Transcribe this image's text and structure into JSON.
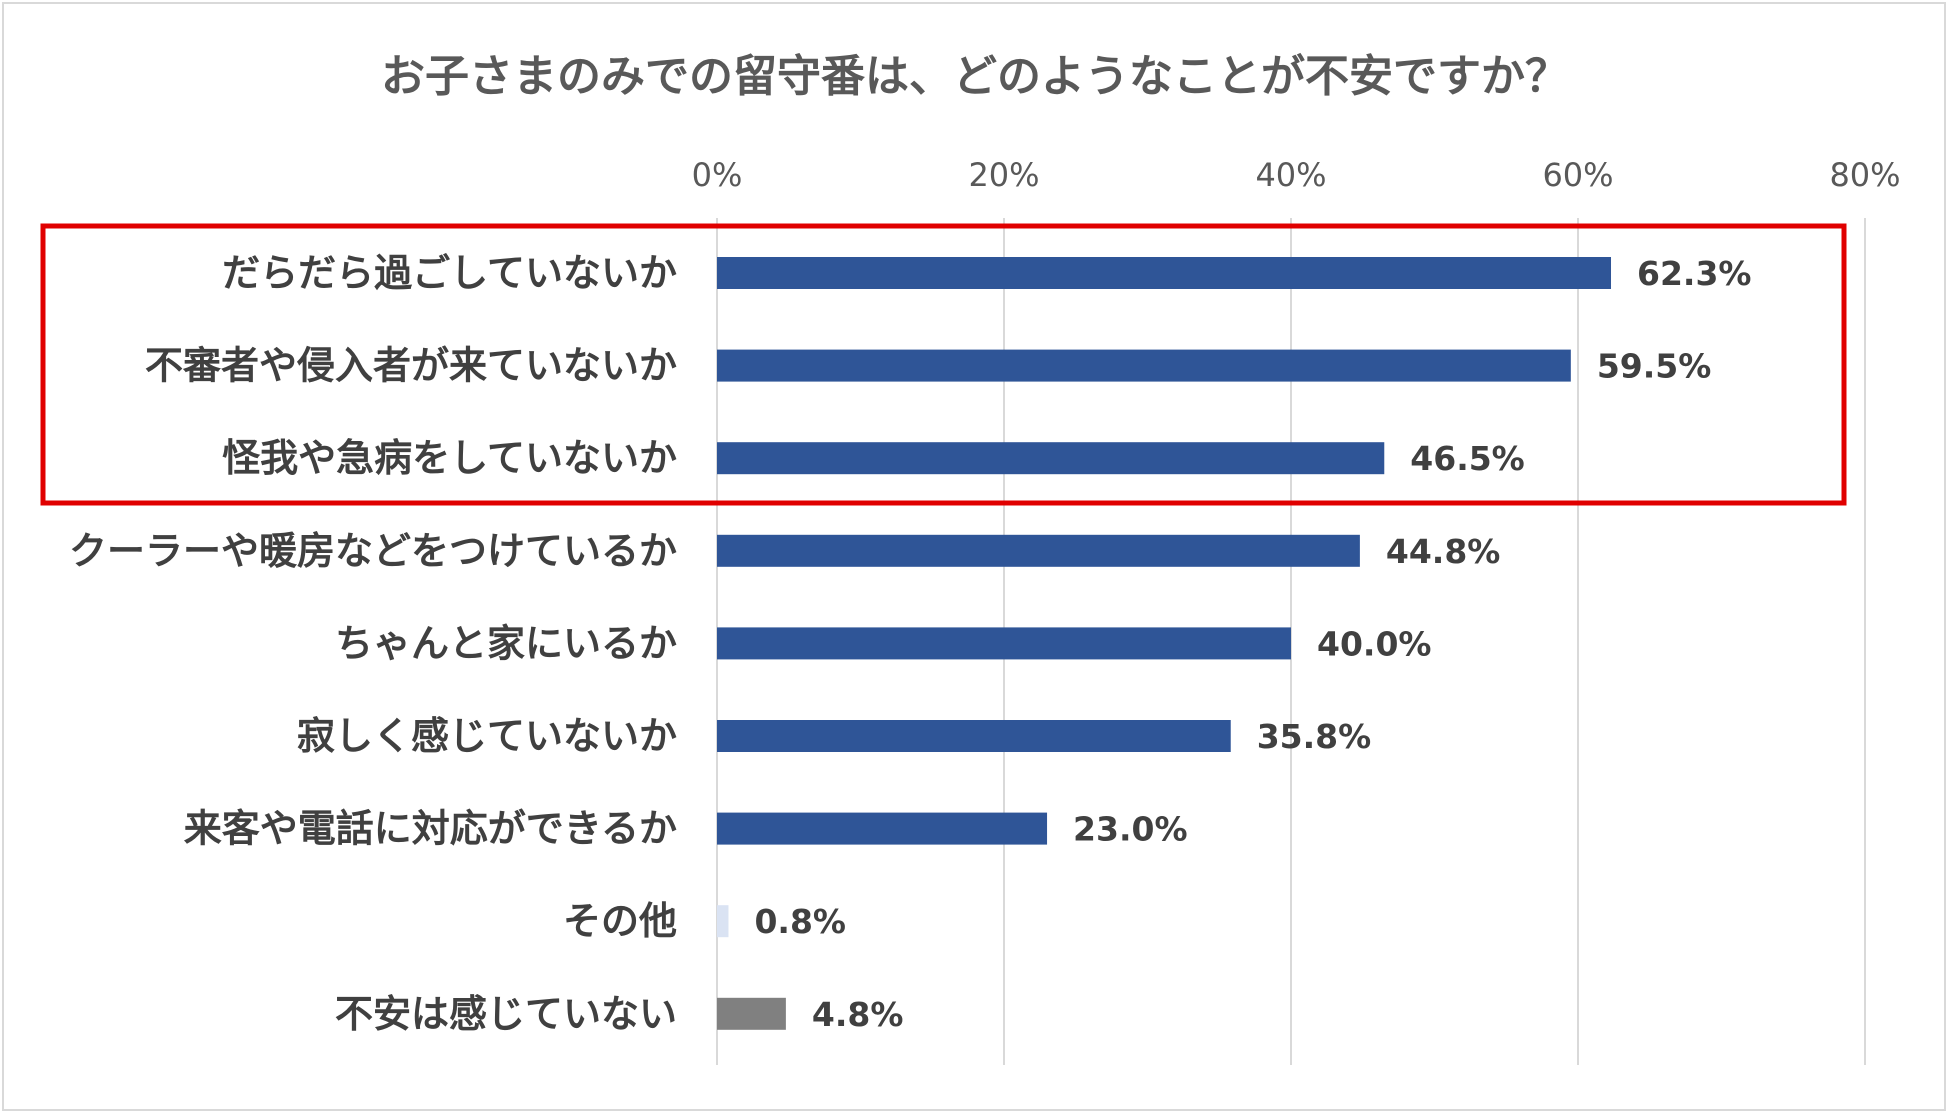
{
  "chart_data": {
    "type": "bar",
    "orientation": "horizontal",
    "title": "お子さまのみでの留守番は、どのようなことが不安ですか？",
    "categories": [
      "だらだら過ごしていないか",
      "不審者や侵入者が来ていないか",
      "怪我や急病をしていないか",
      "クーラーや暖房などをつけているか",
      "ちゃんと家にいるか",
      "寂しく感じていないか",
      "来客や電話に対応ができるか",
      "その他",
      "不安は感じていない"
    ],
    "values": [
      62.3,
      59.5,
      46.5,
      44.8,
      40.0,
      35.8,
      23.0,
      0.8,
      4.8
    ],
    "data_labels": [
      "62.3%",
      "59.5%",
      "46.5%",
      "44.8%",
      "40.0%",
      "35.8%",
      "23.0%",
      "0.8%",
      "4.8%"
    ],
    "bar_colors": [
      "#2f5597",
      "#2f5597",
      "#2f5597",
      "#2f5597",
      "#2f5597",
      "#2f5597",
      "#2f5597",
      "#dae3f3",
      "#808080"
    ],
    "xlim": [
      0,
      80
    ],
    "x_ticks": [
      0,
      20,
      40,
      60,
      80
    ],
    "x_tick_labels": [
      "0%",
      "20%",
      "40%",
      "60%",
      "80%"
    ],
    "x_axis_position": "top",
    "grid": true,
    "highlight": {
      "categories_index_range": [
        0,
        2
      ],
      "color": "#e00000"
    },
    "xlabel": "",
    "ylabel": ""
  }
}
